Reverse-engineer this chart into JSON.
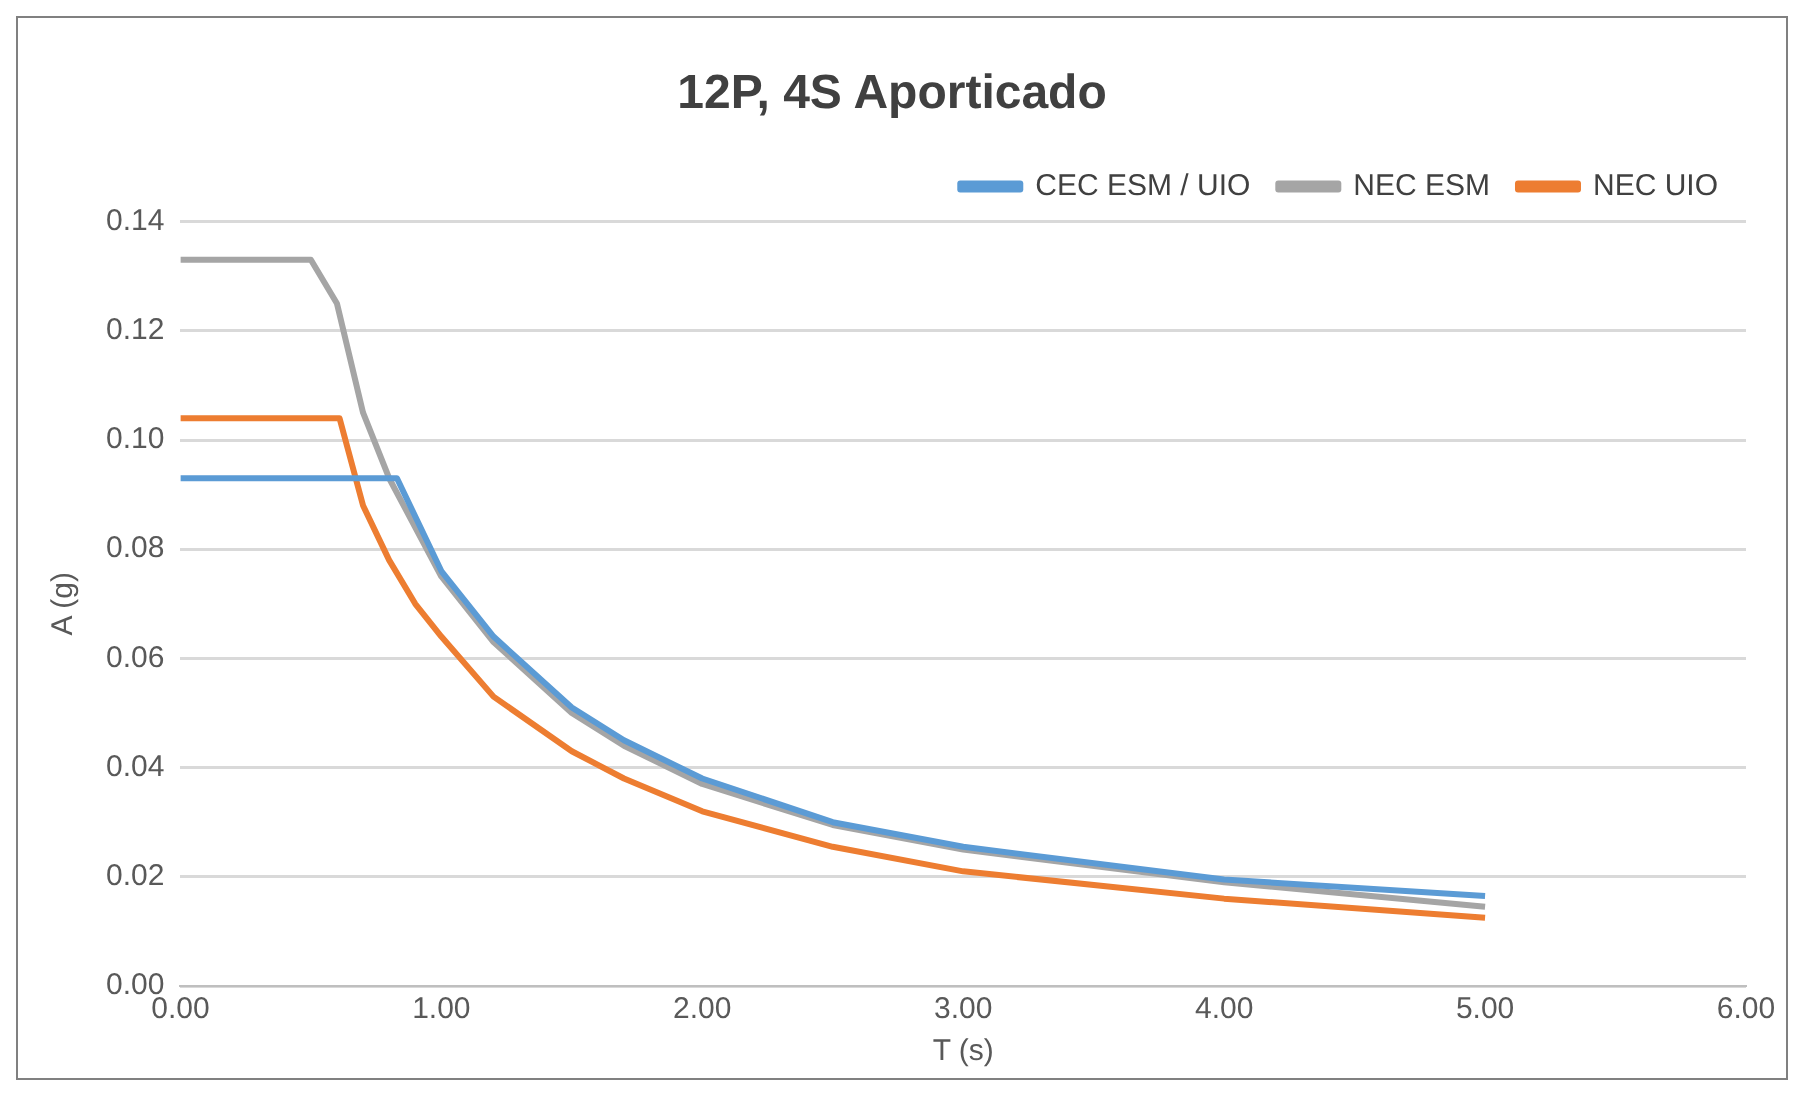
{
  "chart_data": {
    "type": "line",
    "title": "12P, 4S Aporticado",
    "xlabel": "T (s)",
    "ylabel": "A (g)",
    "xlim": [
      0,
      6
    ],
    "xticks": [
      {
        "value": 0,
        "label": "0.00"
      },
      {
        "value": 1,
        "label": "1.00"
      },
      {
        "value": 2,
        "label": "2.00"
      },
      {
        "value": 3,
        "label": "3.00"
      },
      {
        "value": 4,
        "label": "4.00"
      },
      {
        "value": 5,
        "label": "5.00"
      },
      {
        "value": 6,
        "label": "6.00"
      }
    ],
    "ylim": [
      0,
      0.14
    ],
    "yticks": [
      {
        "value": 0,
        "label": "0.00"
      },
      {
        "value": 0.02,
        "label": "0.02"
      },
      {
        "value": 0.04,
        "label": "0.04"
      },
      {
        "value": 0.06,
        "label": "0.06"
      },
      {
        "value": 0.08,
        "label": "0.08"
      },
      {
        "value": 0.1,
        "label": "0.10"
      },
      {
        "value": 0.12,
        "label": "0.12"
      },
      {
        "value": 0.14,
        "label": "0.14"
      }
    ],
    "grid": "y",
    "legend": "top right",
    "marker": "none",
    "series": [
      {
        "name": "CEC ESM / UIO",
        "color": "#5b9bd5",
        "x": [
          0,
          0.83,
          1,
          1.2,
          1.5,
          1.7,
          2,
          2.5,
          3,
          4,
          5
        ],
        "values": [
          0.093,
          0.093,
          0.076,
          0.064,
          0.051,
          0.045,
          0.038,
          0.03,
          0.0255,
          0.0195,
          0.0165
        ]
      },
      {
        "name": "NEC ESM",
        "color": "#a5a5a5",
        "x": [
          0,
          0.5,
          0.6,
          0.7,
          0.8,
          1,
          1.2,
          1.5,
          1.7,
          2,
          2.5,
          3,
          4,
          5
        ],
        "values": [
          0.133,
          0.133,
          0.125,
          0.105,
          0.093,
          0.075,
          0.063,
          0.05,
          0.044,
          0.037,
          0.0295,
          0.025,
          0.019,
          0.0145
        ]
      },
      {
        "name": "NEC UIO",
        "color": "#ed7d31",
        "x": [
          0,
          0.61,
          0.7,
          0.8,
          0.9,
          1,
          1.2,
          1.5,
          1.7,
          2,
          2.5,
          3,
          4,
          5
        ],
        "values": [
          0.104,
          0.104,
          0.088,
          0.078,
          0.07,
          0.064,
          0.053,
          0.043,
          0.038,
          0.032,
          0.0255,
          0.021,
          0.016,
          0.0125
        ]
      }
    ]
  }
}
